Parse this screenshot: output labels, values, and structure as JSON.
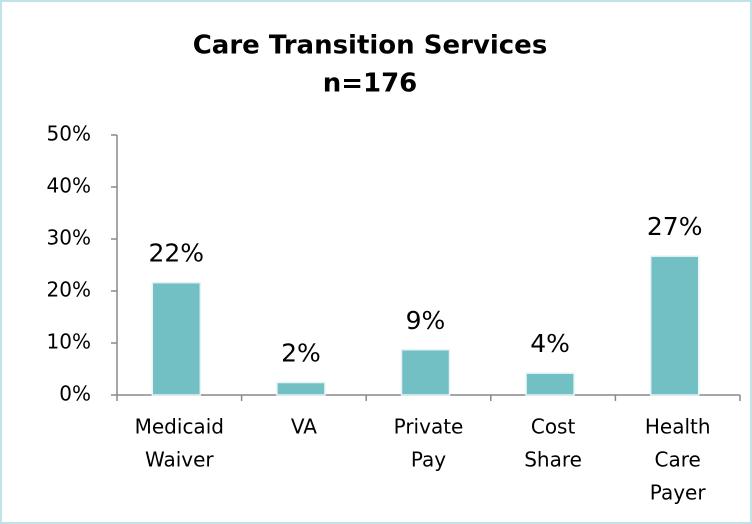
{
  "chart_data": {
    "type": "bar",
    "title": [
      "Care Transition Services",
      "n=176"
    ],
    "categories": [
      [
        "Medicaid",
        "Waiver"
      ],
      [
        "VA"
      ],
      [
        "Private",
        "Pay"
      ],
      [
        "Cost",
        "Share"
      ],
      [
        "Health",
        "Care",
        "Payer"
      ]
    ],
    "values": [
      21.6,
      2.4,
      8.7,
      4.2,
      26.7
    ],
    "value_labels": [
      "22%",
      "2%",
      "9%",
      "4%",
      "27%"
    ],
    "color": "#72bfc4",
    "ylim": [
      0,
      50
    ],
    "yticks": [
      {
        "value": 0,
        "label": "0%"
      },
      {
        "value": 10,
        "label": "10%"
      },
      {
        "value": 20,
        "label": "20%"
      },
      {
        "value": 30,
        "label": "30%"
      },
      {
        "value": 40,
        "label": "40%"
      },
      {
        "value": 50,
        "label": "50%"
      }
    ],
    "grid": false
  }
}
